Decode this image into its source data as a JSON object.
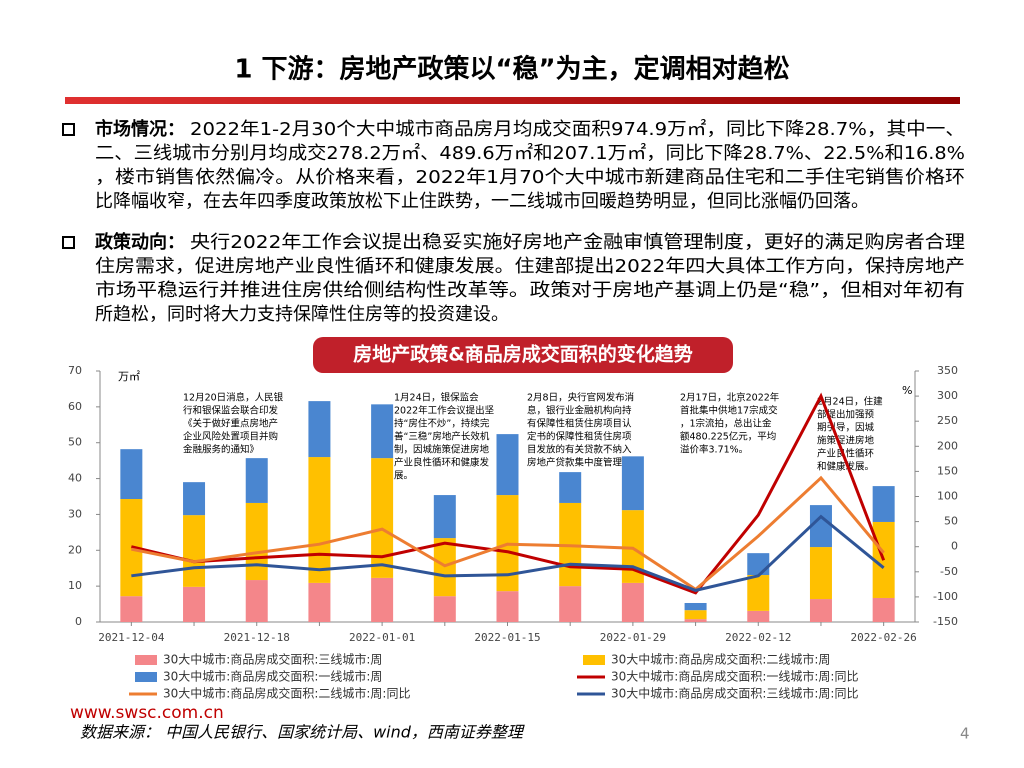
{
  "header": {
    "title": "1 下游：房地产政策以“稳”为主，定调相对趋松"
  },
  "bullets": [
    {
      "label": "市场情况：",
      "lines": [
        "2022年1-2月30个大中城市商品房月均成交面积974.9万㎡，同比下降28.7%，其中一、",
        "二、三线城市分别月均成交278.2万㎡、489.6万㎡和207.1万㎡，同比下降28.7%、22.5%和16.8%",
        "，楼市销售依然偏冷。从价格来看，2022年1月70个大中城市新建商品住宅和二手住宅销售价格环",
        "比降幅收窄，在去年四季度政策放松下止住跌势，一二线城市回暖趋势明显，但同比涨幅仍回落。"
      ]
    },
    {
      "label": "政策动向：",
      "lines": [
        "央行2022年工作会议提出稳妥实施好房地产金融审慎管理制度，更好的满足购房者合理",
        "住房需求，促进房地产业良性循环和健康发展。住建部提出2022年四大具体工作方向，保持房地产",
        "市场平稳运行并推进住房供给侧结构性改革等。政策对于房地产基调上仍是“稳”，但相对年初有",
        "所趋松，同时将大力支持保障性住房等的投资建设。"
      ]
    }
  ],
  "chart_data": {
    "type": "bar",
    "title": "房地产政策&商品房成交面积的变化趋势",
    "y_unit": "万㎡",
    "y2_unit": "%",
    "categories": [
      "2021-12-04",
      null,
      "2021-12-18",
      null,
      "2022-01-01",
      null,
      "2022-01-15",
      null,
      "2022-01-29",
      null,
      "2022-02-12",
      null,
      "2022-02-26"
    ],
    "ylim": [
      0,
      70
    ],
    "yticks": [
      0,
      10,
      20,
      30,
      40,
      50,
      60,
      70
    ],
    "y2lim": [
      -150,
      350
    ],
    "y2ticks": [
      -150,
      -100,
      -50,
      0,
      50,
      100,
      150,
      200,
      250,
      300,
      350
    ],
    "grid": false,
    "series": [
      {
        "name": "30大中城市:商品房成交面积:三线城市:周",
        "type": "bar",
        "color": "#f4868a",
        "values": [
          7.2,
          9.8,
          11.7,
          10.9,
          12.3,
          7.2,
          8.6,
          10,
          10.9,
          0.8,
          3.1,
          6.4,
          6.7
        ]
      },
      {
        "name": "30大中城市:商品房成交面积:二线城市:周",
        "type": "bar",
        "color": "#ffc000",
        "values": [
          27.1,
          20,
          21.5,
          35.1,
          33.4,
          16.2,
          26.8,
          23.2,
          20.3,
          2.5,
          10,
          14.5,
          21.2
        ]
      },
      {
        "name": "30大中城市:商品房成交面积:一线城市:周",
        "type": "bar",
        "color": "#4a86d0",
        "values": [
          13.9,
          9.2,
          12.5,
          15.6,
          15,
          12,
          17,
          8.6,
          15,
          2,
          6.1,
          11.7,
          10
        ]
      },
      {
        "name": "30大中城市:商品房成交面积:一线城市:周:同比",
        "type": "line",
        "axis": "y2",
        "color": "#c00000",
        "values": [
          0,
          -30,
          -22,
          -15,
          -20,
          7,
          -10,
          -40,
          -45,
          -92,
          63,
          300,
          -27
        ]
      },
      {
        "name": "30大中城市:商品房成交面积:二线城市:周:同比",
        "type": "line",
        "axis": "y2",
        "color": "#ed7d31",
        "values": [
          -5,
          -30,
          -12,
          5,
          35,
          -38,
          5,
          2,
          -3,
          -85,
          21,
          137,
          -12
        ]
      },
      {
        "name": "30大中城市:商品房成交面积:三线城市:周:同比",
        "type": "line",
        "axis": "y2",
        "color": "#2f5597",
        "values": [
          -58,
          -42,
          -36,
          -46,
          -36,
          -58,
          -56,
          -35,
          -40,
          -87,
          -58,
          60,
          -42
        ]
      }
    ],
    "annotations": [
      [
        "12月20日消息，人民银",
        "行和银保监会联合印发",
        "《关于做好重点房地产",
        "企业风险处置项目并购",
        "金融服务的通知》"
      ],
      [
        "1月24日，银保监会",
        "2022年工作会议提出坚",
        "持“房住不炒”，持续完",
        "善“三稳”房地产长效机",
        "制，因城施策促进房地",
        "产业良性循环和健康发",
        "展。"
      ],
      [
        "2月8日，央行官网发布消",
        "息，银行业金融机构向持",
        "有保障性租赁住房项目认",
        "定书的保障性租赁住房项",
        "目发放的有关贷款不纳入",
        "房地产贷款集中度管理"
      ],
      [
        "2月17日，北京2022年",
        "首批集中供地17宗成交",
        "，1宗流拍，总出让金",
        "额480.225亿元，平均",
        "溢价率3.71%。"
      ],
      [
        "2月24日，住建",
        "部提出加强预",
        "期引导，因城",
        "施策促进房地",
        "产业良性循环",
        "和健康发展。"
      ]
    ]
  },
  "footer": {
    "website": "www.swsc.com.cn",
    "source": "数据来源： 中国人民银行、国家统计局、wind，西南证券整理",
    "page": "4"
  }
}
